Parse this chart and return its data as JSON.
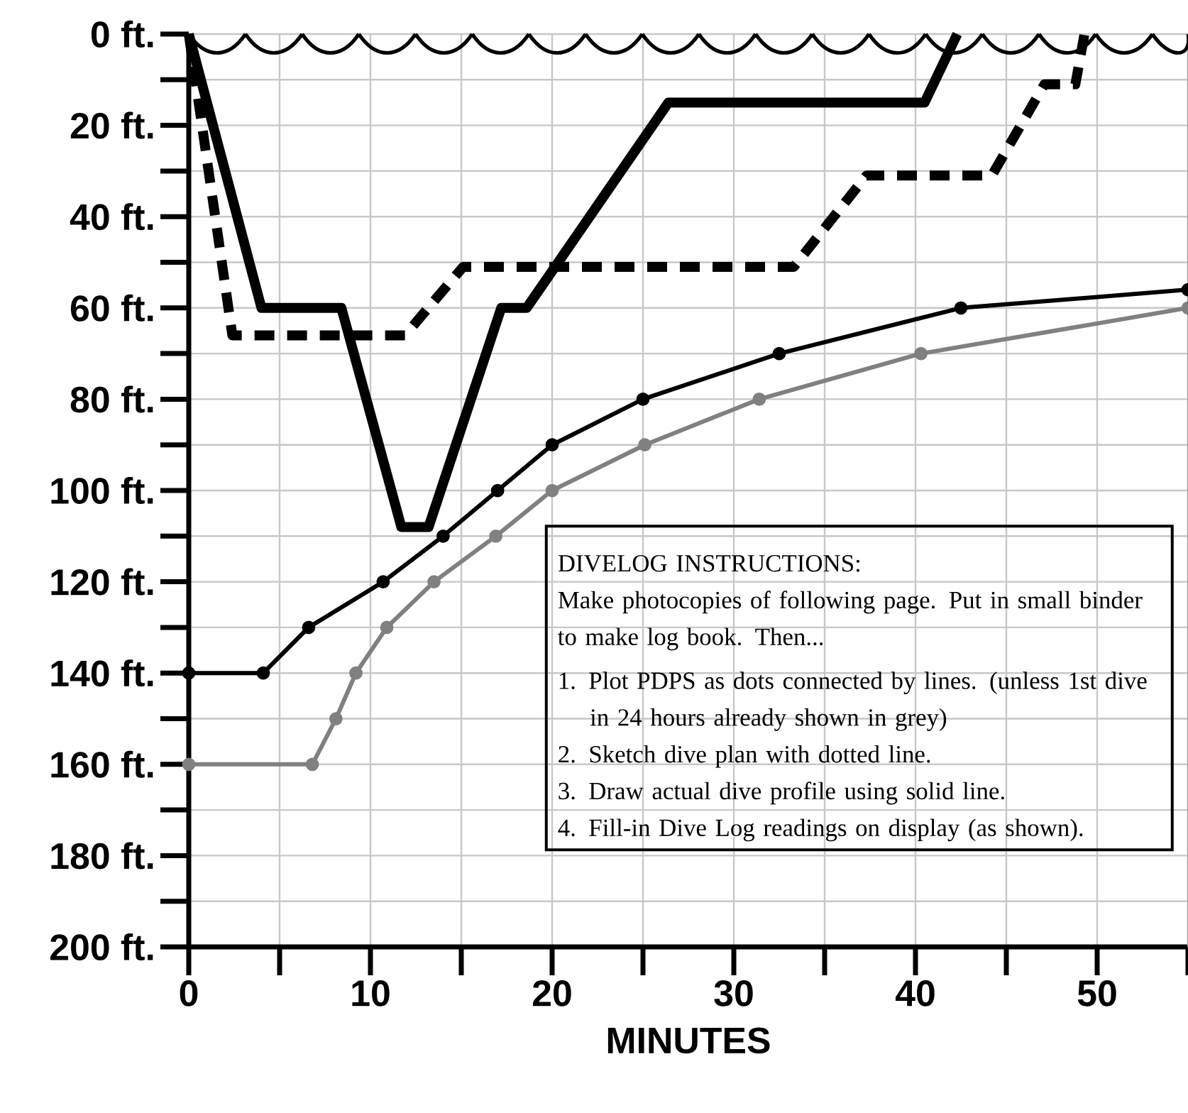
{
  "chart_data": {
    "type": "line",
    "xlabel": "MINUTES",
    "xlim": [
      0,
      55
    ],
    "xticks": [
      0,
      {
        "value": 5,
        "label": null
      },
      10,
      {
        "value": 15,
        "label": null
      },
      20,
      {
        "value": 25,
        "label": null
      },
      30,
      {
        "value": 35,
        "label": null
      },
      40,
      {
        "value": 45,
        "label": null
      },
      50,
      {
        "value": 55,
        "label": null
      }
    ],
    "ylim": [
      200,
      0
    ],
    "yticks": [
      {
        "value": 0,
        "label": "0 ft."
      },
      {
        "value": 10,
        "label": null
      },
      {
        "value": 20,
        "label": "20 ft."
      },
      {
        "value": 30,
        "label": null
      },
      {
        "value": 40,
        "label": "40 ft."
      },
      {
        "value": 50,
        "label": null
      },
      {
        "value": 60,
        "label": "60 ft."
      },
      {
        "value": 70,
        "label": null
      },
      {
        "value": 80,
        "label": "80 ft."
      },
      {
        "value": 90,
        "label": null
      },
      {
        "value": 100,
        "label": "100 ft."
      },
      {
        "value": 110,
        "label": null
      },
      {
        "value": 120,
        "label": "120 ft."
      },
      {
        "value": 130,
        "label": null
      },
      {
        "value": 140,
        "label": "140 ft."
      },
      {
        "value": 150,
        "label": null
      },
      {
        "value": 160,
        "label": "160 ft."
      },
      {
        "value": 170,
        "label": null
      },
      {
        "value": 180,
        "label": "180 ft."
      },
      {
        "value": 190,
        "label": null
      },
      {
        "value": 200,
        "label": "200 ft."
      }
    ],
    "grid": true,
    "series": [
      {
        "color": "#808080",
        "marker": "circle",
        "line_style": "solid",
        "x": [
          0,
          6.8,
          8.1,
          9.2,
          10.9,
          13.5,
          16.9,
          20.0,
          25.1,
          31.4,
          40.3,
          55
        ],
        "values": [
          160,
          160,
          150,
          140,
          130,
          120,
          110,
          100,
          90,
          80,
          70,
          60
        ]
      },
      {
        "color": "#000000",
        "marker": "circle",
        "line_style": "solid",
        "x": [
          0,
          4.1,
          6.6,
          10.7,
          14.0,
          17.0,
          20.0,
          25.0,
          32.5,
          42.5,
          55
        ],
        "values": [
          140,
          140,
          130,
          120,
          110,
          100,
          90,
          80,
          70,
          60,
          56
        ]
      },
      {
        "color": "#000000",
        "marker": "none",
        "line_style": "dashed",
        "x": [
          0,
          2.4,
          11.9,
          15.1,
          33.3,
          37.3,
          44.2,
          47.1,
          48.8,
          49.3
        ],
        "values": [
          0,
          66,
          66,
          51,
          51,
          31,
          31,
          11,
          11,
          0
        ]
      },
      {
        "color": "#000000",
        "marker": "none",
        "line_style": "solid",
        "x": [
          0,
          4.0,
          8.4,
          11.7,
          13.2,
          17.2,
          18.6,
          26.4,
          40.5,
          42.3
        ],
        "values": [
          0,
          60,
          60,
          108,
          108,
          60,
          60,
          15,
          15,
          0
        ]
      }
    ],
    "annotations": [
      "DIVELOG  INSTRUCTIONS:",
      "Make photocopies of following page. Put in small binder to make log book.  Then...",
      "1. Plot PDPS as dots connected by lines. (unless 1st dive in 24 hours already shown in grey)",
      "2. Sketch dive plan with dotted line.",
      "3. Draw actual dive profile using solid line.",
      "4. Fill-in Dive Log readings on display (as shown)."
    ]
  }
}
